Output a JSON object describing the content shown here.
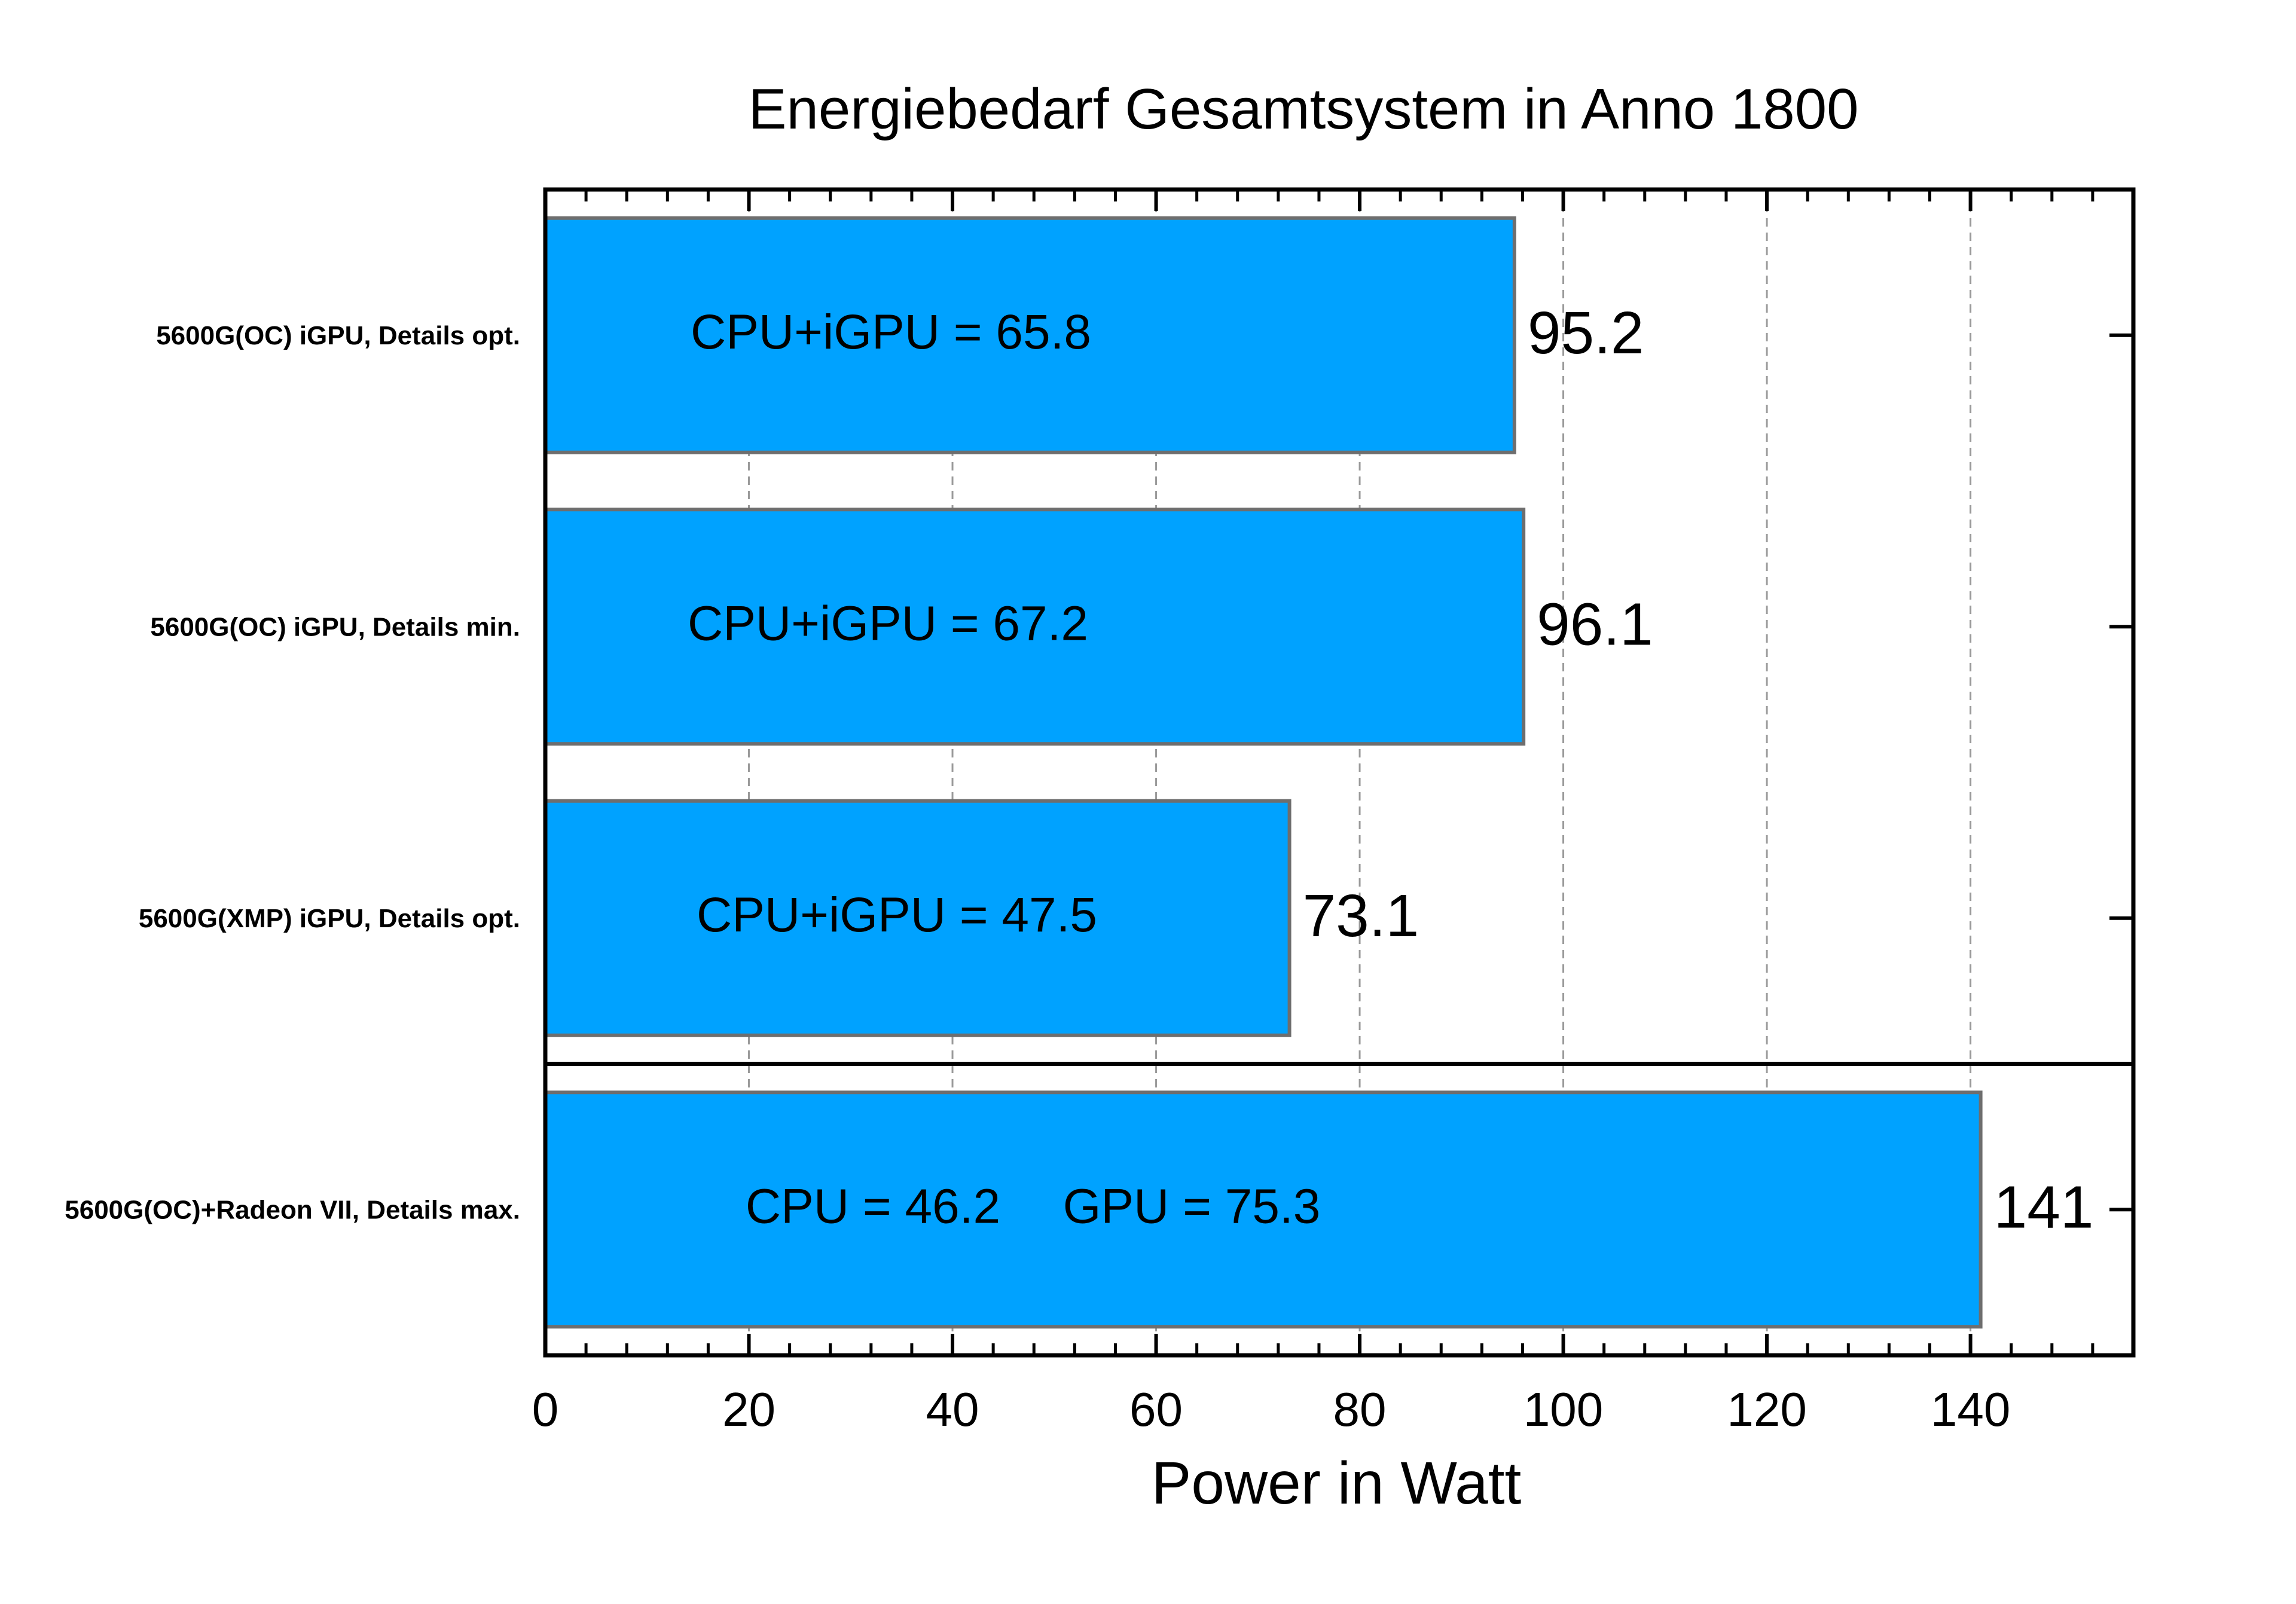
{
  "chart_data": {
    "type": "bar",
    "orientation": "horizontal",
    "title": "Energiebedarf Gesamtsystem in Anno 1800",
    "xlabel": "Power in Watt",
    "ylabel": "",
    "xlim": [
      0,
      156
    ],
    "xticks": [
      0,
      20,
      40,
      60,
      80,
      100,
      120,
      140
    ],
    "grid": "vertical dashed",
    "bar_color": "#00A2FF",
    "bar_edge_color": "#6e6e6e",
    "categories": [
      "5600G(OC) iGPU, Details opt.",
      "5600G(OC) iGPU, Details min.",
      "5600G(XMP) iGPU, Details opt.",
      "5600G(OC)+Radeon VII, Details max."
    ],
    "values": [
      95.2,
      96.1,
      73.1,
      141
    ],
    "value_labels": [
      "95.2",
      "96.1",
      "73.1",
      "141"
    ],
    "annotations": [
      [
        "CPU+iGPU = 65.8"
      ],
      [
        "CPU+iGPU = 67.2"
      ],
      [
        "CPU+iGPU = 47.5"
      ],
      [
        "CPU = 46.2",
        "GPU = 75.3"
      ]
    ],
    "separator_after_index": 2
  }
}
